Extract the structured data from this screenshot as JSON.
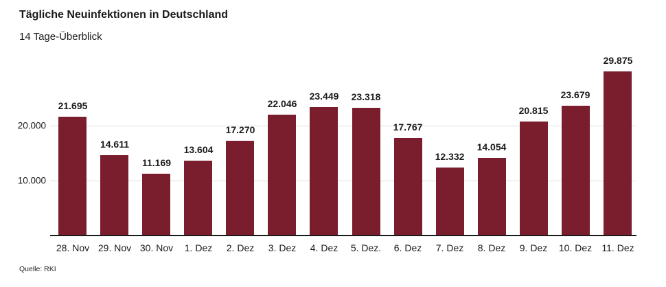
{
  "chart_data": {
    "type": "bar",
    "title": "Tägliche Neuinfektionen in Deutschland",
    "subtitle": "14 Tage-Überblick",
    "source": "Quelle: RKI",
    "categories": [
      "28. Nov",
      "29. Nov",
      "30. Nov",
      "1. Dez",
      "2. Dez",
      "3. Dez",
      "4. Dez",
      "5. Dez.",
      "6. Dez",
      "7. Dez",
      "8. Dez",
      "9. Dez",
      "10. Dez",
      "11. Dez"
    ],
    "values": [
      21695,
      14611,
      11169,
      13604,
      17270,
      22046,
      23449,
      23318,
      17767,
      12332,
      14054,
      20815,
      23679,
      29875
    ],
    "value_labels": [
      "21.695",
      "14.611",
      "11.169",
      "13.604",
      "17.270",
      "22.046",
      "23.449",
      "23.318",
      "17.767",
      "12.332",
      "14.054",
      "20.815",
      "23.679",
      "29.875"
    ],
    "yticks": [
      {
        "value": 10000,
        "label": "10.000"
      },
      {
        "value": 20000,
        "label": "20.000"
      }
    ],
    "ylim": [
      0,
      33500
    ],
    "xlabel": "",
    "ylabel": "",
    "grid": "horizontal",
    "legend": "none",
    "bar_color": "#7a1e2d",
    "gridline_color": "#e0e0e0",
    "axis_color": "#1a1a1a",
    "text_color": "#1a1a1a"
  }
}
